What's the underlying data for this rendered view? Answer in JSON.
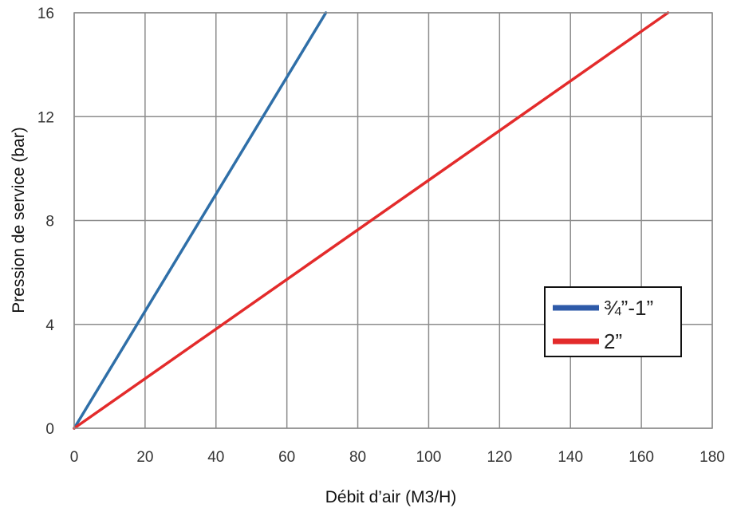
{
  "chart_data": {
    "type": "line",
    "title": "",
    "xlabel": "Débit d’air (M3/H)",
    "ylabel": "Pression de service (bar)",
    "xlim": [
      0,
      180
    ],
    "ylim": [
      0,
      16
    ],
    "x_ticks": [
      0,
      20,
      40,
      60,
      80,
      100,
      120,
      140,
      160,
      180
    ],
    "y_ticks": [
      0,
      4,
      8,
      12,
      16
    ],
    "x_tick_labels": [
      "0",
      "20",
      "40",
      "60",
      "80",
      "100",
      "120",
      "140",
      "160",
      "180"
    ],
    "y_tick_labels": [
      "0",
      "4",
      "8",
      "12",
      "16"
    ],
    "grid": true,
    "legend_position": "right",
    "series": [
      {
        "name": "¾”-1”",
        "color": "#2e5aa8",
        "line_color": "#2f6fa8",
        "x": [
          0,
          71
        ],
        "y": [
          0,
          16
        ]
      },
      {
        "name": "2”",
        "color": "#e32b2b",
        "line_color": "#e32b2b",
        "x": [
          0,
          167.5
        ],
        "y": [
          0,
          16
        ]
      }
    ]
  }
}
